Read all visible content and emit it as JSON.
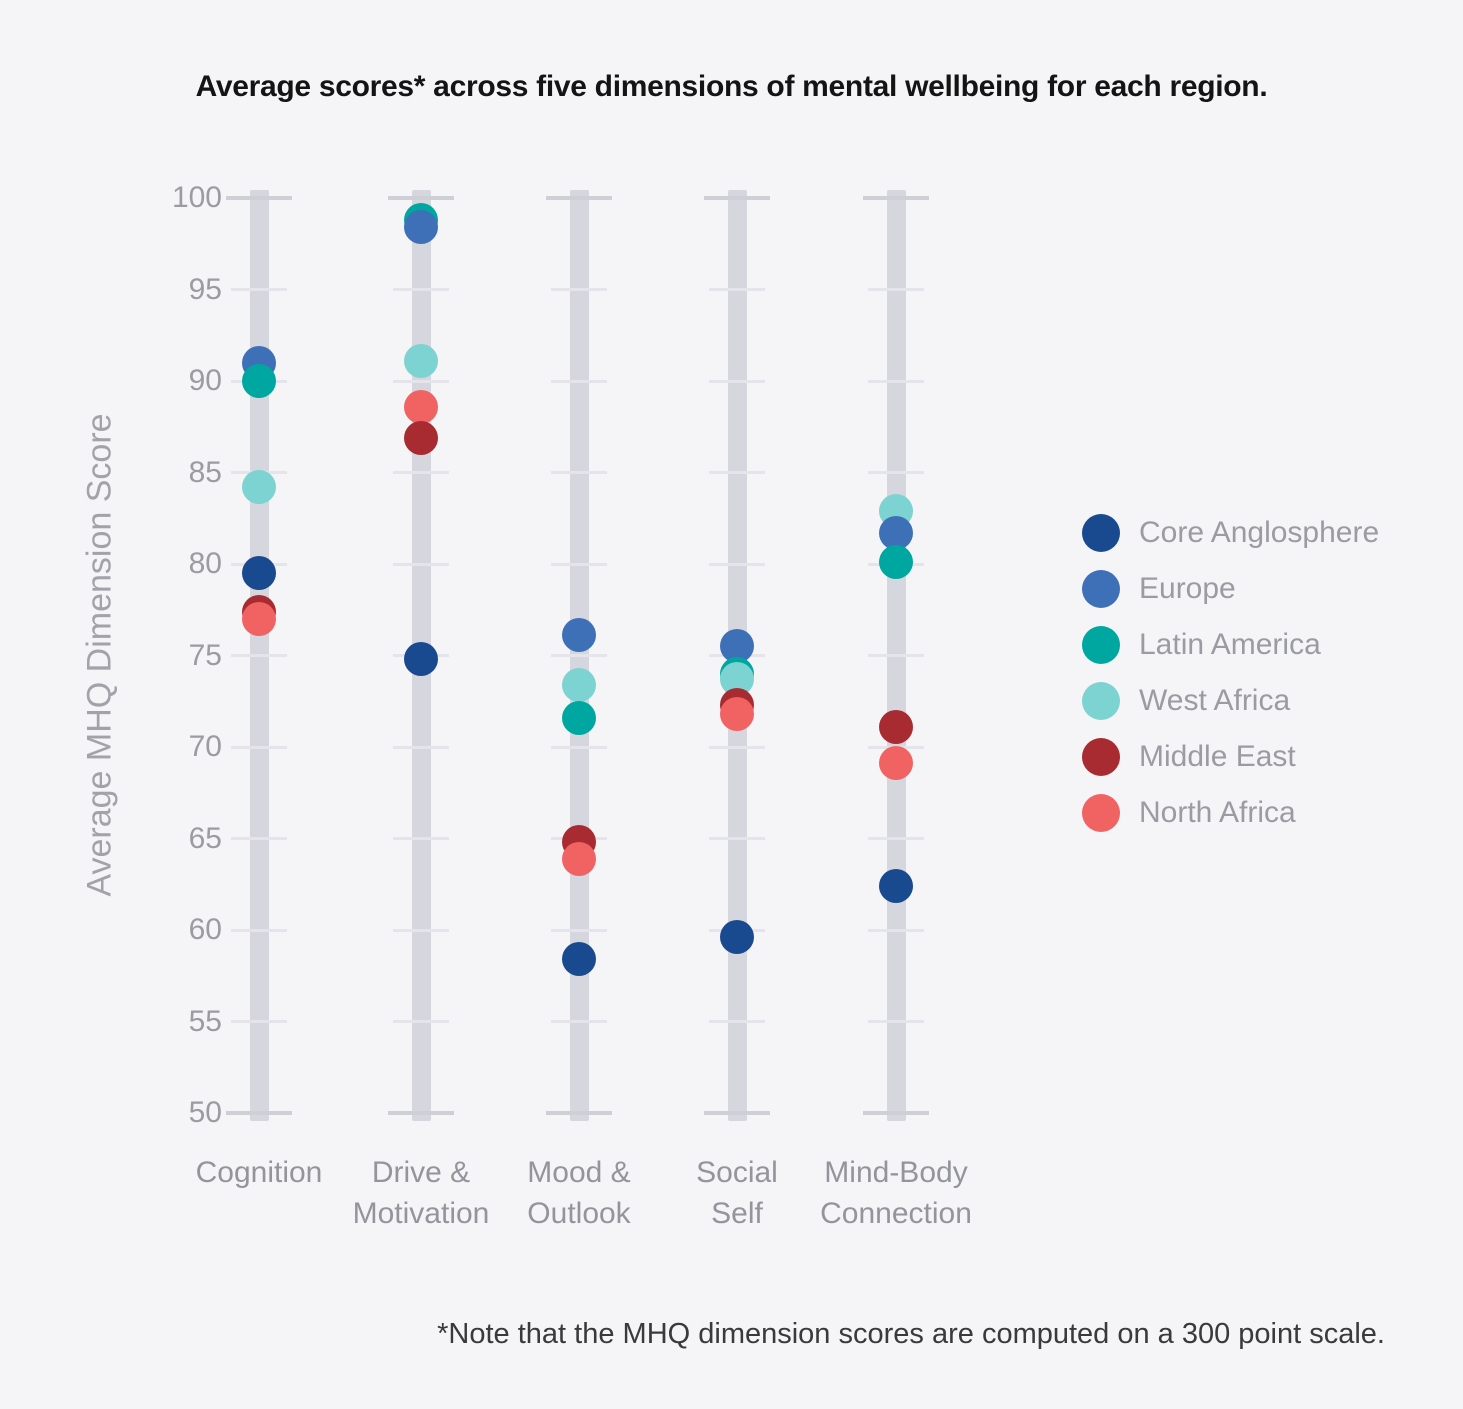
{
  "chart_data": {
    "type": "scatter",
    "variant": "strip-dot-plot",
    "title": "Average scores* across five dimensions of mental wellbeing for each region.",
    "ylabel": "Average MHQ Dimension Score",
    "xlabel": "",
    "footnote": "*Note that the MHQ dimension scores are computed on a 300 point scale.",
    "ylim": [
      50,
      100
    ],
    "yticks": [
      50,
      55,
      60,
      65,
      70,
      75,
      80,
      85,
      90,
      95,
      100
    ],
    "grid": false,
    "legend_position": "right-center",
    "categories": [
      "Cognition",
      "Drive & Motivation",
      "Mood & Outlook",
      "Social Self",
      "Mind-Body Connection"
    ],
    "category_label_lines": [
      [
        "Cognition"
      ],
      [
        "Drive &",
        "Motivation"
      ],
      [
        "Mood &",
        "Outlook"
      ],
      [
        "Social",
        "Self"
      ],
      [
        "Mind-Body",
        "Connection"
      ]
    ],
    "series": [
      {
        "name": "Core Anglosphere",
        "color": "#194a90",
        "values": [
          79.5,
          74.8,
          58.4,
          59.6,
          62.4
        ]
      },
      {
        "name": "Europe",
        "color": "#3e70b8",
        "values": [
          91.0,
          98.4,
          76.1,
          75.5,
          81.7
        ]
      },
      {
        "name": "Latin America",
        "color": "#00a7a1",
        "values": [
          90.0,
          98.8,
          71.6,
          74.0,
          80.1
        ]
      },
      {
        "name": "West Africa",
        "color": "#7dd3d1",
        "values": [
          84.2,
          91.1,
          73.4,
          73.7,
          82.9
        ]
      },
      {
        "name": "Middle East",
        "color": "#a72b31",
        "values": [
          77.4,
          86.9,
          64.8,
          72.3,
          71.1
        ]
      },
      {
        "name": "North Africa",
        "color": "#f16263",
        "values": [
          77.0,
          88.6,
          63.9,
          71.8,
          69.1
        ]
      }
    ],
    "z_order_rule": "lower value drawn on top within each category"
  },
  "colors": {
    "background": "#f5f4f6",
    "strip": "#d6d6de",
    "tick": "#e4e4ea",
    "axis_text": "#9b9ca2",
    "title_text": "#141414",
    "footnote_text": "#3a3a3a"
  }
}
